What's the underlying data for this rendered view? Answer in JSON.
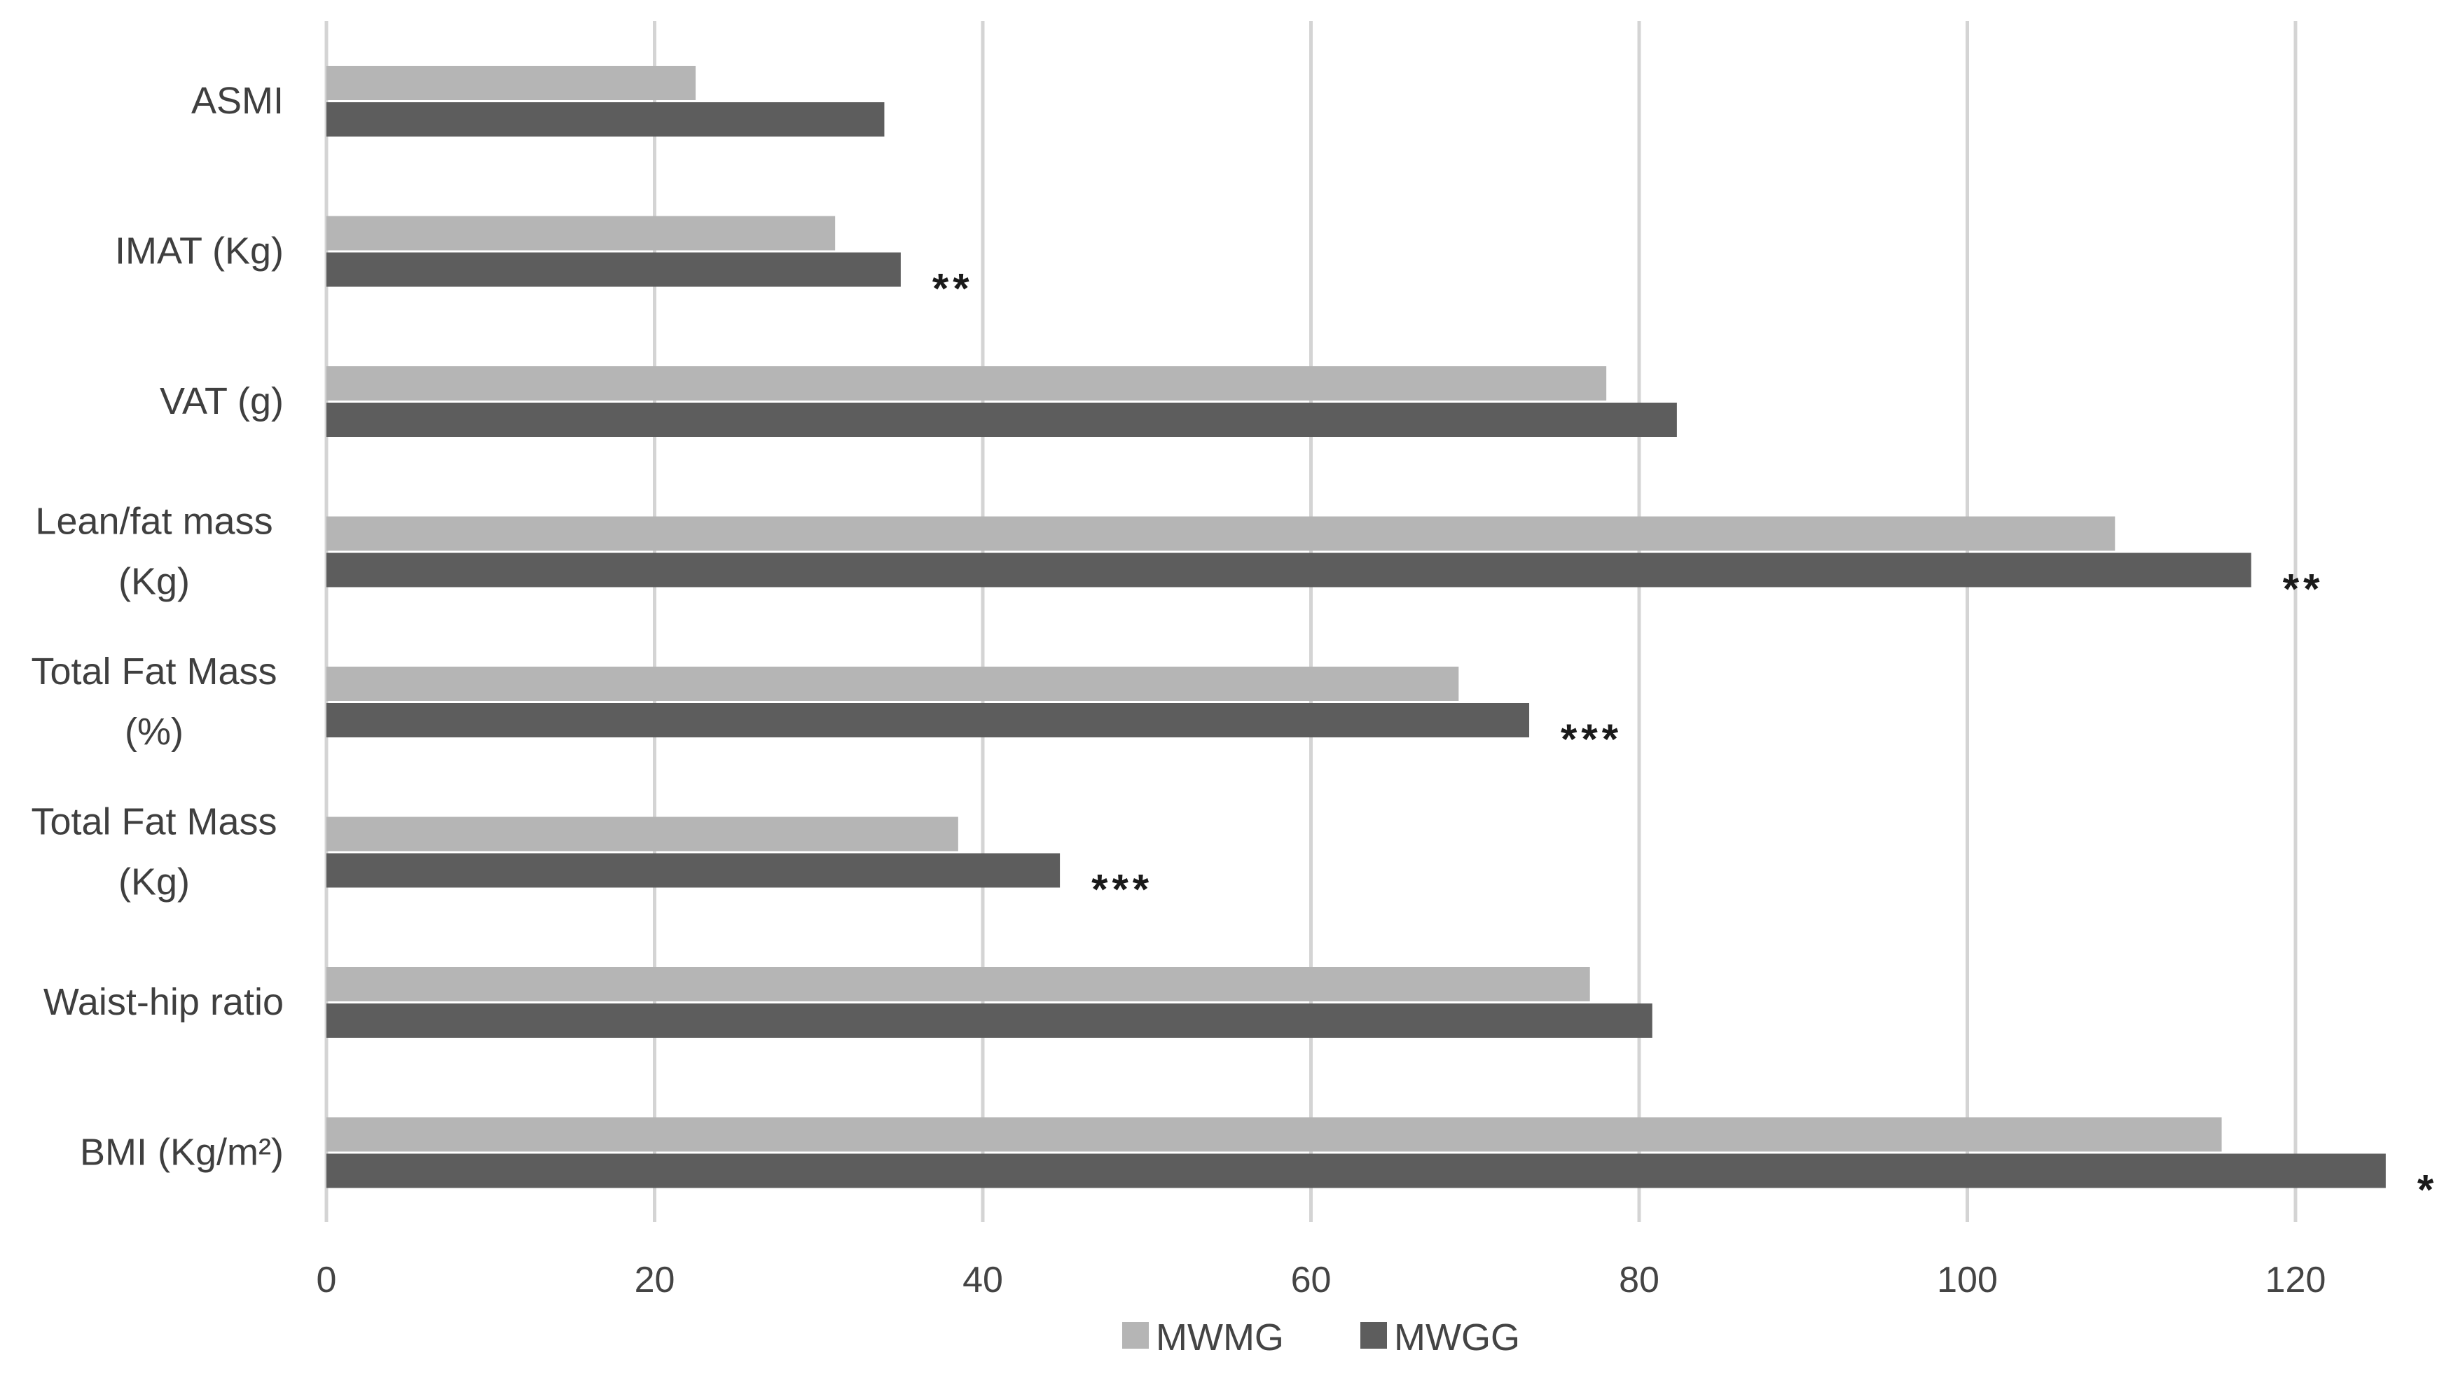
{
  "chart_data": {
    "type": "bar",
    "orientation": "horizontal",
    "categories": [
      [
        "ASMI"
      ],
      [
        "IMAT (Kg)"
      ],
      [
        "VAT (g)"
      ],
      [
        "Lean/fat mass",
        "(Kg)"
      ],
      [
        "Total Fat Mass",
        "(%)"
      ],
      [
        "Total Fat Mass",
        "(Kg)"
      ],
      [
        "Waist-hip ratio"
      ],
      [
        "BMI (Kg/m²)"
      ]
    ],
    "series": [
      {
        "name": "MWMG",
        "color": "#b5b5b5",
        "values": [
          22.5,
          31,
          78,
          109,
          69,
          38.5,
          77,
          115.5
        ]
      },
      {
        "name": "MWGG",
        "color": "#5d5d5d",
        "values": [
          34,
          35,
          82.3,
          117.3,
          73.3,
          44.7,
          80.8,
          125.5
        ]
      }
    ],
    "significance": [
      "",
      "**",
      "",
      "**",
      "***",
      "***",
      "",
      "*"
    ],
    "xlim": [
      0,
      125
    ],
    "xticks": [
      0,
      20,
      40,
      60,
      80,
      100,
      120
    ],
    "title": "",
    "xlabel": "",
    "ylabel": "",
    "grid": "vertical",
    "legend_position": "bottom"
  }
}
